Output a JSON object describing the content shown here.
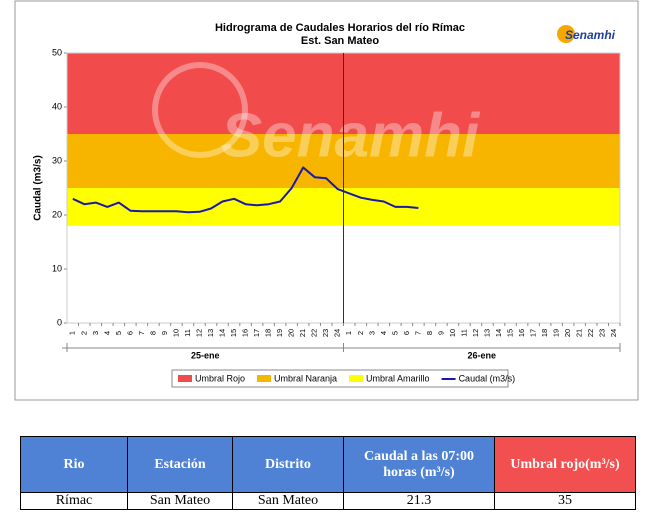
{
  "chart_data": {
    "type": "line",
    "title": "Hidrograma de Caudales Horarios del río Rímac",
    "subtitle": "Est. San Mateo",
    "logo": "Senamhi",
    "watermark": "Senamhi",
    "ylabel": "Caudal (m3/s)",
    "ylim": [
      0,
      50
    ],
    "yticks": [
      0,
      10,
      20,
      30,
      40,
      50
    ],
    "categories": [
      "1",
      "2",
      "3",
      "4",
      "5",
      "6",
      "7",
      "8",
      "9",
      "10",
      "11",
      "12",
      "13",
      "14",
      "15",
      "16",
      "17",
      "18",
      "19",
      "20",
      "21",
      "22",
      "23",
      "24",
      "1",
      "2",
      "3",
      "4",
      "5",
      "6",
      "7",
      "8",
      "9",
      "10",
      "11",
      "12",
      "13",
      "14",
      "15",
      "16",
      "17",
      "18",
      "19",
      "20",
      "21",
      "22",
      "23",
      "24"
    ],
    "group_labels": [
      "25-ene",
      "26-ene"
    ],
    "thresholds": [
      {
        "name": "Umbral Rojo",
        "color": "#f24b4b",
        "from": 35,
        "to": 50
      },
      {
        "name": "Umbral Naranja",
        "color": "#f7b500",
        "from": 25,
        "to": 35
      },
      {
        "name": "Umbral Amarillo",
        "color": "#ffff00",
        "from": 18,
        "to": 25
      }
    ],
    "series": [
      {
        "name": "Caudal (m3/s)",
        "color": "#1a1aa6",
        "values": [
          23,
          22,
          22.3,
          21.5,
          22.3,
          20.8,
          20.7,
          20.7,
          20.7,
          20.7,
          20.5,
          20.6,
          21.2,
          22.5,
          23,
          22,
          21.8,
          22,
          22.5,
          25,
          28.8,
          27,
          26.8,
          24.8,
          24,
          23.2,
          22.8,
          22.5,
          21.5,
          21.5,
          21.3,
          null,
          null,
          null,
          null,
          null,
          null,
          null,
          null,
          null,
          null,
          null,
          null,
          null,
          null,
          null,
          null,
          null
        ]
      }
    ]
  },
  "table": {
    "header": [
      "Rio",
      "Estación",
      "Distrito",
      "Caudal a las 07:00 horas (m³/s)",
      "Umbral rojo(m³/s)"
    ],
    "rows": [
      [
        "Rímac",
        "San Mateo",
        "San Mateo",
        21.3,
        35
      ]
    ]
  }
}
